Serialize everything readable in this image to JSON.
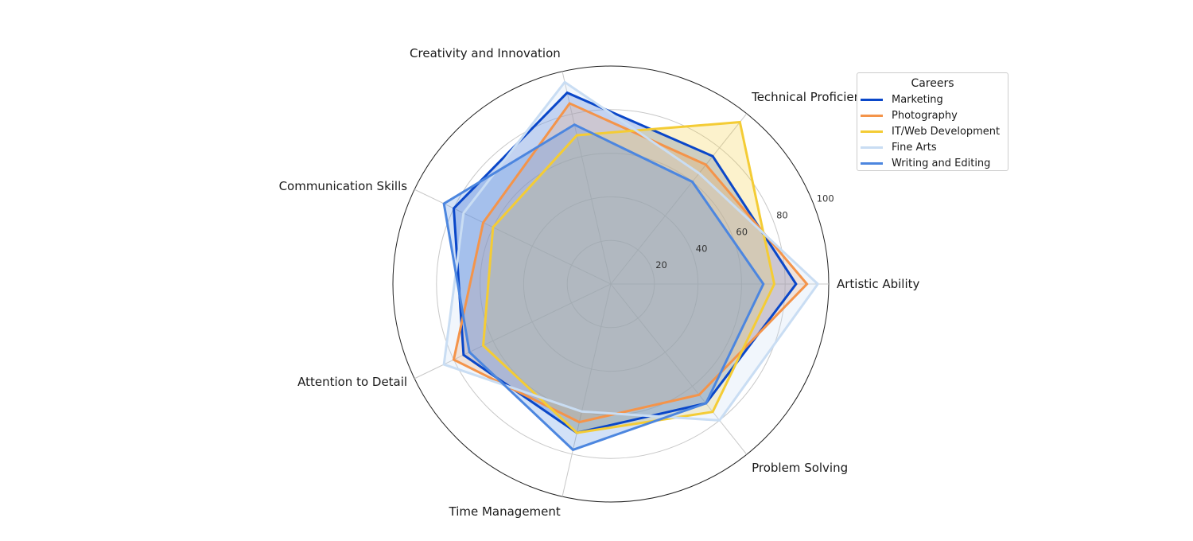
{
  "chart_data": {
    "type": "radar",
    "axes": [
      "Artistic Ability",
      "Technical Proficiency",
      "Creativity and Innovation",
      "Communication Skills",
      "Attention to Detail",
      "Time Management",
      "Problem Solving"
    ],
    "rlim": [
      0,
      100
    ],
    "r_ticks": [
      20,
      40,
      60,
      80,
      100
    ],
    "grid": true,
    "legend": {
      "title": "Careers",
      "placement": "upper-right"
    },
    "series": [
      {
        "name": "Marketing",
        "color": "#0a47c9",
        "values": [
          85,
          75,
          90,
          80,
          75,
          70,
          70
        ]
      },
      {
        "name": "Photography",
        "color": "#f4944a",
        "values": [
          90,
          70,
          85,
          65,
          80,
          65,
          65
        ]
      },
      {
        "name": "IT/Web Development",
        "color": "#f4cc35",
        "values": [
          75,
          95,
          70,
          60,
          65,
          70,
          75
        ]
      },
      {
        "name": "Fine Arts",
        "color": "#c9ddf3",
        "values": [
          95,
          65,
          95,
          75,
          85,
          60,
          80
        ]
      },
      {
        "name": "Writing and Editing",
        "color": "#4c86df",
        "values": [
          70,
          60,
          75,
          85,
          72,
          78,
          70
        ]
      }
    ]
  }
}
